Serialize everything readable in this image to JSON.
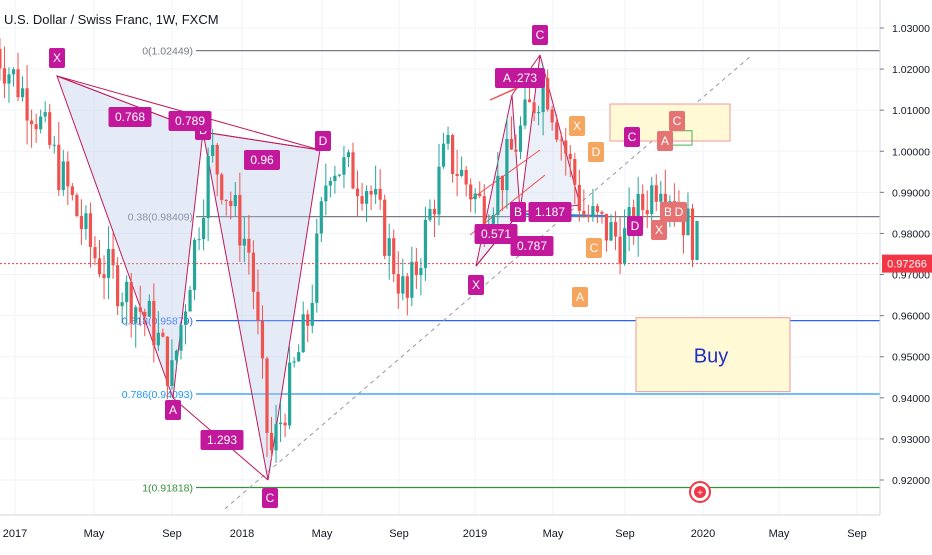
{
  "header": {
    "title": "U.S. Dollar / Swiss Franc, 1W, FXCM"
  },
  "price_axis": {
    "labels": [
      "1.03000",
      "1.02000",
      "1.01000",
      "1.00000",
      "0.99000",
      "0.98000",
      "0.97000",
      "0.96000",
      "0.95000",
      "0.94000",
      "0.93000",
      "0.92000"
    ],
    "current_price": "0.97266",
    "current_price_color": "#f23645"
  },
  "time_axis": {
    "labels": [
      "2017",
      "May",
      "Sep",
      "2018",
      "May",
      "Sep",
      "2019",
      "May",
      "Sep",
      "2020",
      "May",
      "Sep"
    ]
  },
  "fib_levels": [
    {
      "label": "0(1.02449)",
      "value": 1.02449,
      "color": "#787b86"
    },
    {
      "label": "0.38(0.98409)",
      "value": 0.98409,
      "color": "#787b86"
    },
    {
      "label": "0.618(0.95879)",
      "value": 0.95879,
      "color": "#2962ff"
    },
    {
      "label": "0.786(0.94093)",
      "value": 0.94093,
      "color": "#2196f3"
    },
    {
      "label": "1(0.91818)",
      "value": 0.91818,
      "color": "#388e3c"
    }
  ],
  "annotations": {
    "buy_label": "Buy",
    "pattern1": {
      "x": "X",
      "a": "A",
      "b": "B",
      "c": "C",
      "d": "D",
      "r1": "0.768",
      "r2": "0.789",
      "r3": "0.96",
      "r4": "1.293"
    },
    "pattern2": {
      "x": "X",
      "a": "A",
      "a_ratio": "A .273",
      "b": "B",
      "c": "C",
      "r1": "0.571",
      "r2": "0.787",
      "r3": "1.187"
    },
    "pattern3": {
      "x": "X",
      "a": "A",
      "b": "B",
      "c": "C",
      "d": "D"
    }
  },
  "chart_data": {
    "type": "candlestick",
    "symbol": "USDCHF",
    "title": "U.S. Dollar / Swiss Franc, 1W, FXCM",
    "ylim": [
      0.912,
      1.034
    ],
    "y_ticks": [
      1.03,
      1.02,
      1.01,
      1.0,
      0.99,
      0.98,
      0.97,
      0.96,
      0.95,
      0.94,
      0.93,
      0.92
    ],
    "x_ticks": [
      "2017",
      "May",
      "Sep",
      "2018",
      "May",
      "Sep",
      "2019",
      "May",
      "Sep",
      "2020",
      "May",
      "Sep"
    ],
    "last_price": 0.97266,
    "approx_close_path": [
      {
        "t": "2016-12",
        "v": 1.025
      },
      {
        "t": "2017-02",
        "v": 1.01
      },
      {
        "t": "2017-05",
        "v": 0.975
      },
      {
        "t": "2017-08",
        "v": 0.958
      },
      {
        "t": "2017-09",
        "v": 0.945
      },
      {
        "t": "2017-11",
        "v": 1.0
      },
      {
        "t": "2018-01",
        "v": 0.975
      },
      {
        "t": "2018-02",
        "v": 0.925
      },
      {
        "t": "2018-04",
        "v": 0.96
      },
      {
        "t": "2018-05",
        "v": 0.998
      },
      {
        "t": "2018-07",
        "v": 0.992
      },
      {
        "t": "2018-09",
        "v": 0.963
      },
      {
        "t": "2018-11",
        "v": 1.0
      },
      {
        "t": "2019-01",
        "v": 0.985
      },
      {
        "t": "2019-04",
        "v": 1.018
      },
      {
        "t": "2019-06",
        "v": 0.985
      },
      {
        "t": "2019-08",
        "v": 0.978
      },
      {
        "t": "2019-10",
        "v": 0.995
      },
      {
        "t": "2019-12",
        "v": 0.975
      }
    ]
  }
}
